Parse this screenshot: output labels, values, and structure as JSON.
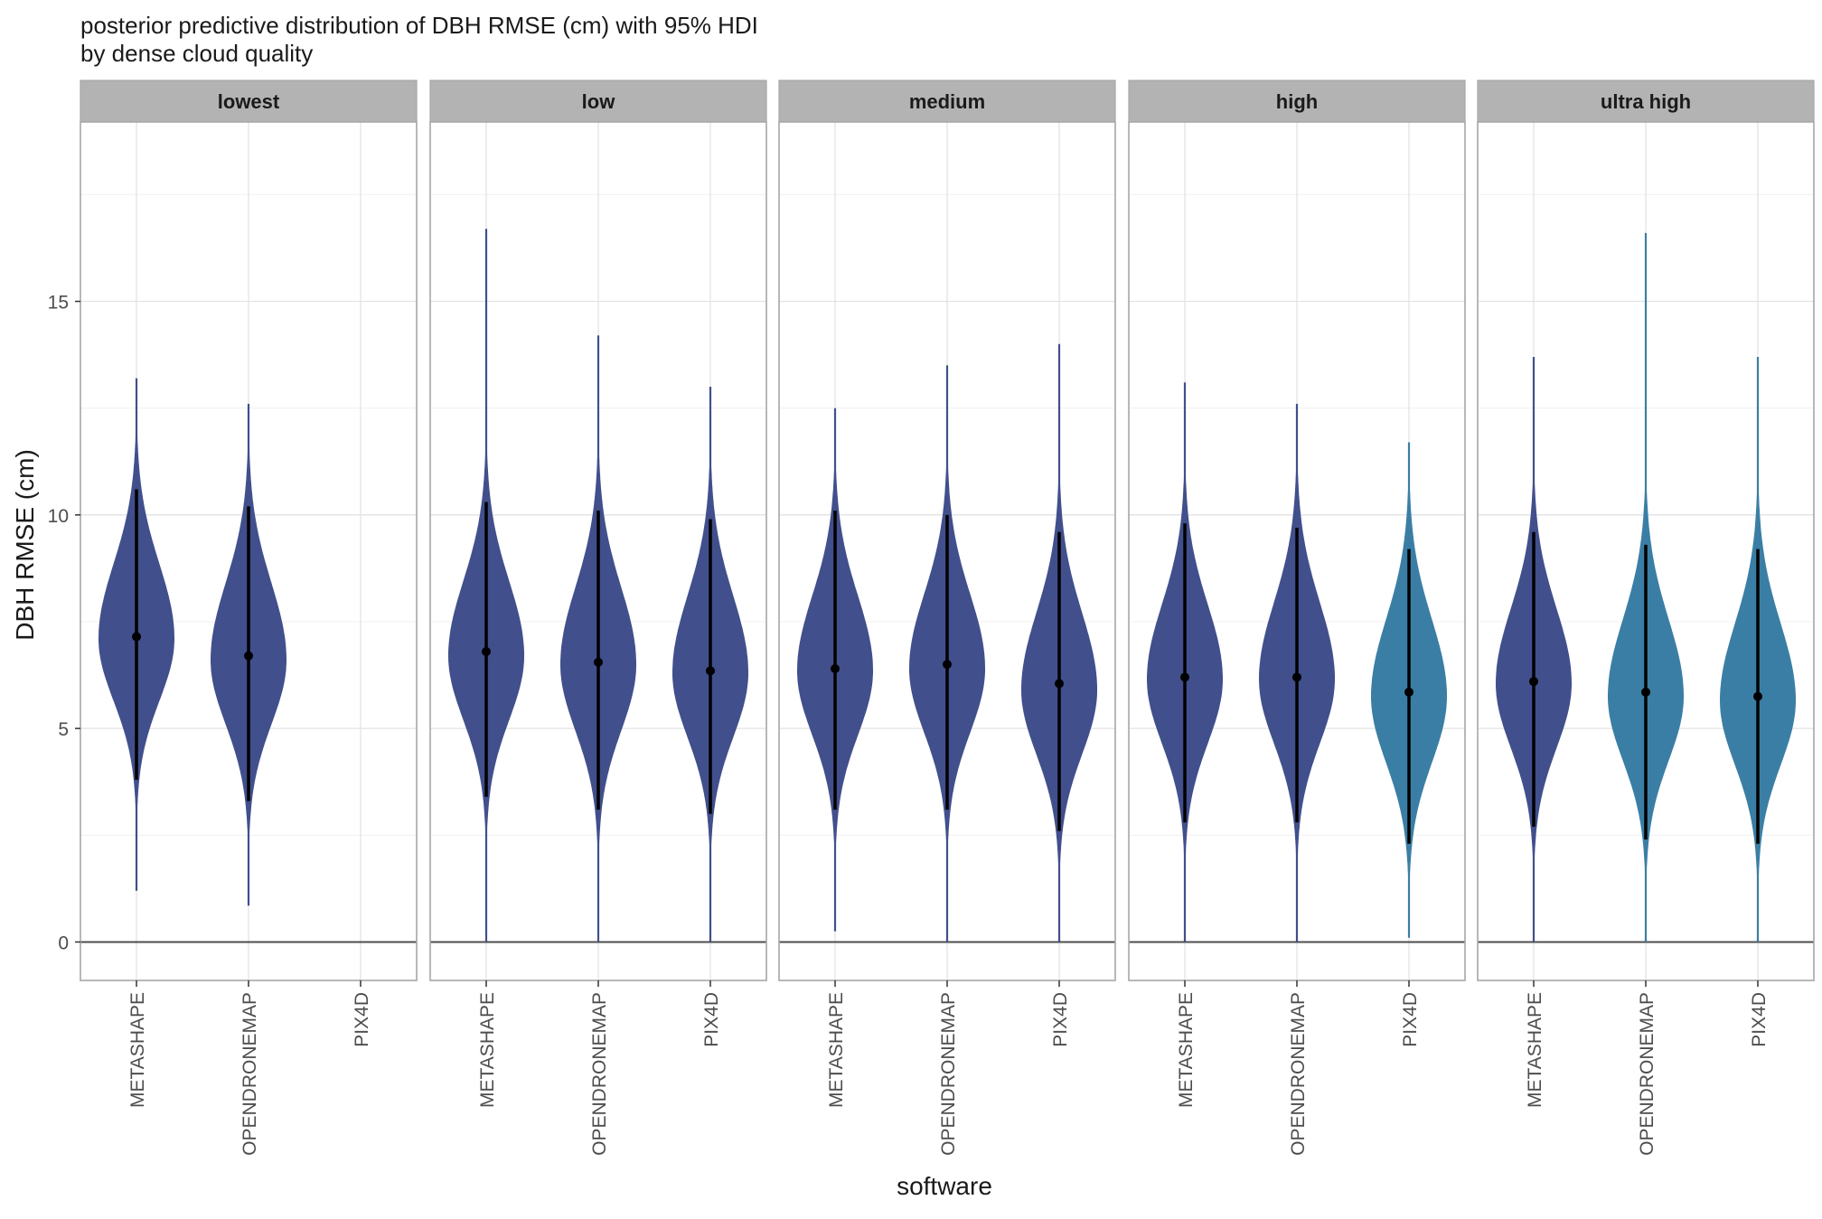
{
  "chart_data": {
    "type": "violin",
    "title": "posterior predictive distribution of DBH RMSE (cm) with 95% HDI",
    "subtitle": "by dense cloud quality",
    "xlabel": "software",
    "ylabel": "DBH RMSE (cm)",
    "ylim": [
      -0.9,
      19.2
    ],
    "yticks": [
      0,
      5,
      10,
      15
    ],
    "grid": true,
    "reference_line_y": 0,
    "categories": [
      "METASHAPE",
      "OPENDRONEMAP",
      "PIX4D"
    ],
    "colors": {
      "dark": "#414f8c",
      "light": "#3b7ea5",
      "panel_strip": "#b3b3b3",
      "grid": "#e3e3e3"
    },
    "panels": [
      {
        "facet": "lowest",
        "violins": [
          {
            "software": "METASHAPE",
            "color": "dark",
            "mean": 7.15,
            "hdi": [
              3.8,
              10.6
            ],
            "min": 1.2,
            "max": 13.2,
            "mode": 7.1,
            "sd_low": 1.45,
            "sd_high": 1.75,
            "halfwidth": 42
          },
          {
            "software": "OPENDRONEMAP",
            "color": "dark",
            "mean": 6.7,
            "hdi": [
              3.3,
              10.2
            ],
            "min": 0.85,
            "max": 12.6,
            "mode": 6.6,
            "sd_low": 1.5,
            "sd_high": 1.8,
            "halfwidth": 42
          }
        ]
      },
      {
        "facet": "low",
        "violins": [
          {
            "software": "METASHAPE",
            "color": "dark",
            "mean": 6.8,
            "hdi": [
              3.4,
              10.3
            ],
            "min": 0.0,
            "max": 16.7,
            "mode": 6.7,
            "sd_low": 1.5,
            "sd_high": 1.75,
            "halfwidth": 42
          },
          {
            "software": "OPENDRONEMAP",
            "color": "dark",
            "mean": 6.55,
            "hdi": [
              3.1,
              10.1
            ],
            "min": 0.0,
            "max": 14.2,
            "mode": 6.5,
            "sd_low": 1.55,
            "sd_high": 1.8,
            "halfwidth": 42
          },
          {
            "software": "PIX4D",
            "color": "dark",
            "mean": 6.35,
            "hdi": [
              3.0,
              9.9
            ],
            "min": 0.0,
            "max": 13.0,
            "mode": 6.3,
            "sd_low": 1.5,
            "sd_high": 1.8,
            "halfwidth": 42
          }
        ]
      },
      {
        "facet": "medium",
        "violins": [
          {
            "software": "METASHAPE",
            "color": "dark",
            "mean": 6.4,
            "hdi": [
              3.1,
              10.1
            ],
            "min": 0.25,
            "max": 12.5,
            "mode": 6.35,
            "sd_low": 1.5,
            "sd_high": 1.75,
            "halfwidth": 42
          },
          {
            "software": "OPENDRONEMAP",
            "color": "dark",
            "mean": 6.5,
            "hdi": [
              3.1,
              10.0
            ],
            "min": 0.0,
            "max": 13.5,
            "mode": 6.4,
            "sd_low": 1.5,
            "sd_high": 1.75,
            "halfwidth": 42
          },
          {
            "software": "PIX4D",
            "color": "dark",
            "mean": 6.05,
            "hdi": [
              2.6,
              9.6
            ],
            "min": 0.0,
            "max": 14.0,
            "mode": 5.9,
            "sd_low": 1.5,
            "sd_high": 1.8,
            "halfwidth": 42
          }
        ]
      },
      {
        "facet": "high",
        "violins": [
          {
            "software": "METASHAPE",
            "color": "dark",
            "mean": 6.2,
            "hdi": [
              2.8,
              9.8
            ],
            "min": 0.0,
            "max": 13.1,
            "mode": 6.15,
            "sd_low": 1.5,
            "sd_high": 1.75,
            "halfwidth": 42
          },
          {
            "software": "OPENDRONEMAP",
            "color": "dark",
            "mean": 6.2,
            "hdi": [
              2.8,
              9.7
            ],
            "min": 0.0,
            "max": 12.6,
            "mode": 6.15,
            "sd_low": 1.5,
            "sd_high": 1.8,
            "halfwidth": 42
          },
          {
            "software": "PIX4D",
            "color": "light",
            "mean": 5.85,
            "hdi": [
              2.3,
              9.2
            ],
            "min": 0.1,
            "max": 11.7,
            "mode": 5.75,
            "sd_low": 1.55,
            "sd_high": 1.8,
            "halfwidth": 42
          }
        ]
      },
      {
        "facet": "ultra high",
        "violins": [
          {
            "software": "METASHAPE",
            "color": "dark",
            "mean": 6.1,
            "hdi": [
              2.7,
              9.6
            ],
            "min": 0.0,
            "max": 13.7,
            "mode": 6.05,
            "sd_low": 1.5,
            "sd_high": 1.75,
            "halfwidth": 42
          },
          {
            "software": "OPENDRONEMAP",
            "color": "light",
            "mean": 5.85,
            "hdi": [
              2.4,
              9.3
            ],
            "min": 0.0,
            "max": 16.6,
            "mode": 5.75,
            "sd_low": 1.5,
            "sd_high": 1.8,
            "halfwidth": 42
          },
          {
            "software": "PIX4D",
            "color": "light",
            "mean": 5.75,
            "hdi": [
              2.3,
              9.2
            ],
            "min": 0.0,
            "max": 13.7,
            "mode": 5.65,
            "sd_low": 1.5,
            "sd_high": 1.8,
            "halfwidth": 42
          }
        ]
      }
    ]
  }
}
